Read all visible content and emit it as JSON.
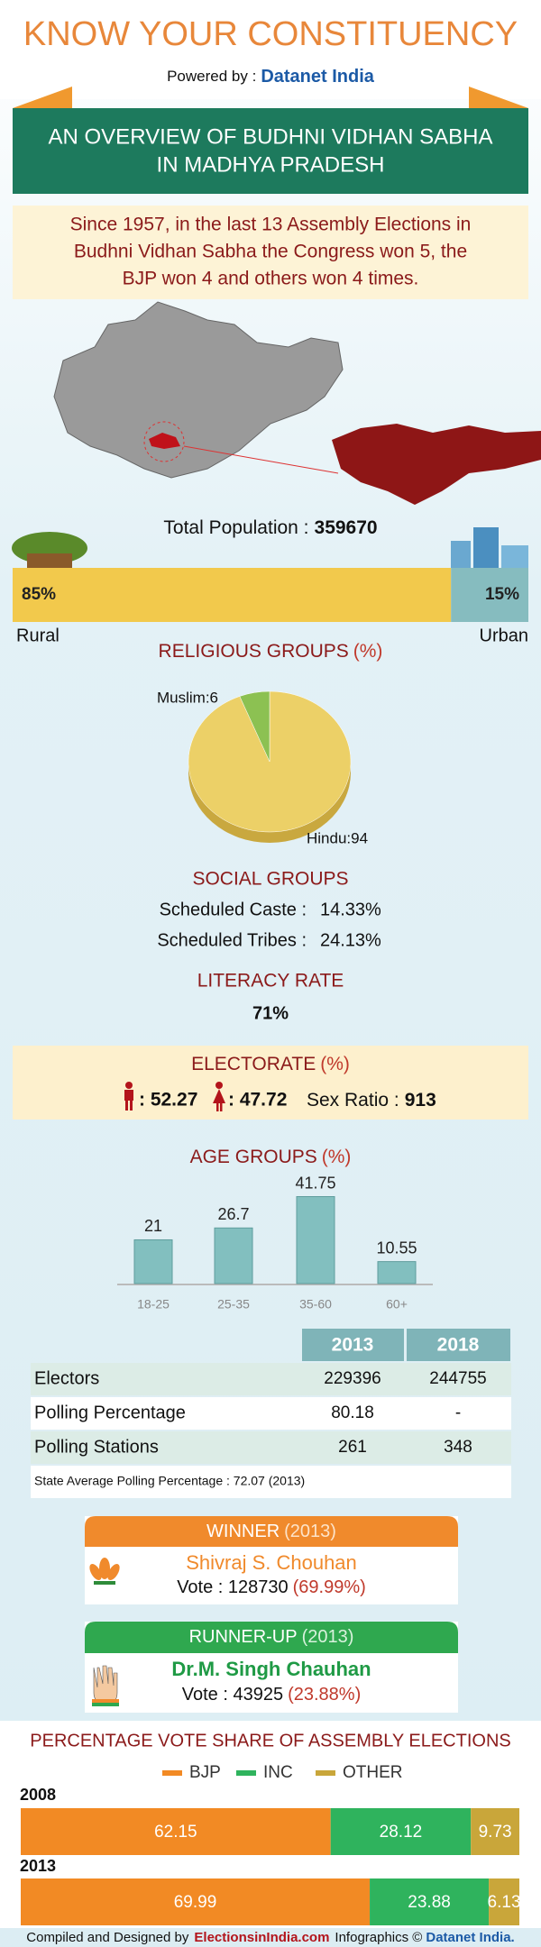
{
  "header": {
    "title": "KNOW YOUR CONSTITUENCY",
    "powered_by": "Powered by :",
    "brand": "Datanet India"
  },
  "banner": {
    "lines": [
      "AN OVERVIEW OF BUDHNI VIDHAN SABHA",
      "IN MADHYA PRADESH"
    ]
  },
  "summary": {
    "lines": [
      "Since 1957, in the last 13 Assembly Elections in",
      "Budhni Vidhan Sabha the Congress won 5, the",
      "BJP won 4 and others won 4 times."
    ]
  },
  "population": {
    "label": "Total Population :",
    "value": 359670
  },
  "social_groups": {
    "title": "SOCIAL GROUPS",
    "rows": [
      {
        "label": "Scheduled Caste :",
        "value": "14.33%"
      },
      {
        "label": "Scheduled Tribes :",
        "value": "24.13%"
      }
    ]
  },
  "literacy": {
    "title": "LITERACY RATE",
    "value": "71%"
  },
  "electorate": {
    "title": "ELECTORATE",
    "unit": "(%)",
    "male": ": 52.27",
    "female": ": 47.72",
    "sex_ratio_label": "Sex Ratio :",
    "sex_ratio": 913
  },
  "table": {
    "headers": [
      "2013",
      "2018"
    ],
    "rows": [
      [
        "Electors",
        "229396",
        "244755"
      ],
      [
        "Polling Percentage",
        "80.18",
        "-"
      ],
      [
        "Polling Stations",
        "261",
        "348"
      ]
    ],
    "note": "State Average Polling Percentage : 72.07 (2013)"
  },
  "winner": {
    "header": "WINNER",
    "year": "(2013)",
    "name": "Shivraj S. Chouhan",
    "vote": "Vote : 128730",
    "share": "(69.99%)"
  },
  "runner_up": {
    "header": "RUNNER-UP",
    "year": "(2013)",
    "name": "Dr.M. Singh Chauhan",
    "vote": "Vote : 43925",
    "share": "(23.88%)"
  },
  "footer": {
    "credit": "Compiled and Designed by",
    "site": "ElectionsinIndia.com",
    "infographics": "Infographics ©",
    "brand": "Datanet India."
  },
  "chart_data": [
    {
      "type": "share_bar",
      "categories": [
        "Rural",
        "Urban"
      ],
      "values": [
        85,
        15
      ],
      "value_labels": [
        "85%",
        "15%"
      ],
      "colors": [
        "#f2c94c",
        "#86bcbf"
      ],
      "xlim": [
        0,
        100
      ]
    },
    {
      "type": "pie",
      "title": "RELIGIOUS GROUPS",
      "unit": "(%)",
      "categories": [
        "Muslim",
        "Hindu"
      ],
      "values": [
        6,
        94
      ],
      "value_labels": [
        "Muslim:6",
        "Hindu:94"
      ],
      "colors": [
        "#8cc152",
        "#ecd067"
      ]
    },
    {
      "type": "bar",
      "title": "AGE GROUPS",
      "unit": "(%)",
      "categories": [
        "18-25",
        "25-35",
        "35-60",
        "60+"
      ],
      "values": [
        21,
        26.7,
        41.75,
        10.55
      ],
      "color": "#82bfbf",
      "ylim": [
        0,
        45
      ]
    },
    {
      "type": "stacked_bar",
      "title": "PERCENTAGE VOTE SHARE OF ASSEMBLY ELECTIONS",
      "categories": [
        "2008",
        "2013"
      ],
      "xlim": [
        0,
        100
      ],
      "series": [
        {
          "name": "BJP",
          "color": "#f28a24",
          "values": [
            62.15,
            69.99
          ]
        },
        {
          "name": "INC",
          "color": "#2fb35d",
          "values": [
            28.12,
            23.88
          ]
        },
        {
          "name": "OTHER",
          "color": "#c9a63a",
          "values": [
            9.73,
            6.13
          ]
        }
      ]
    }
  ]
}
